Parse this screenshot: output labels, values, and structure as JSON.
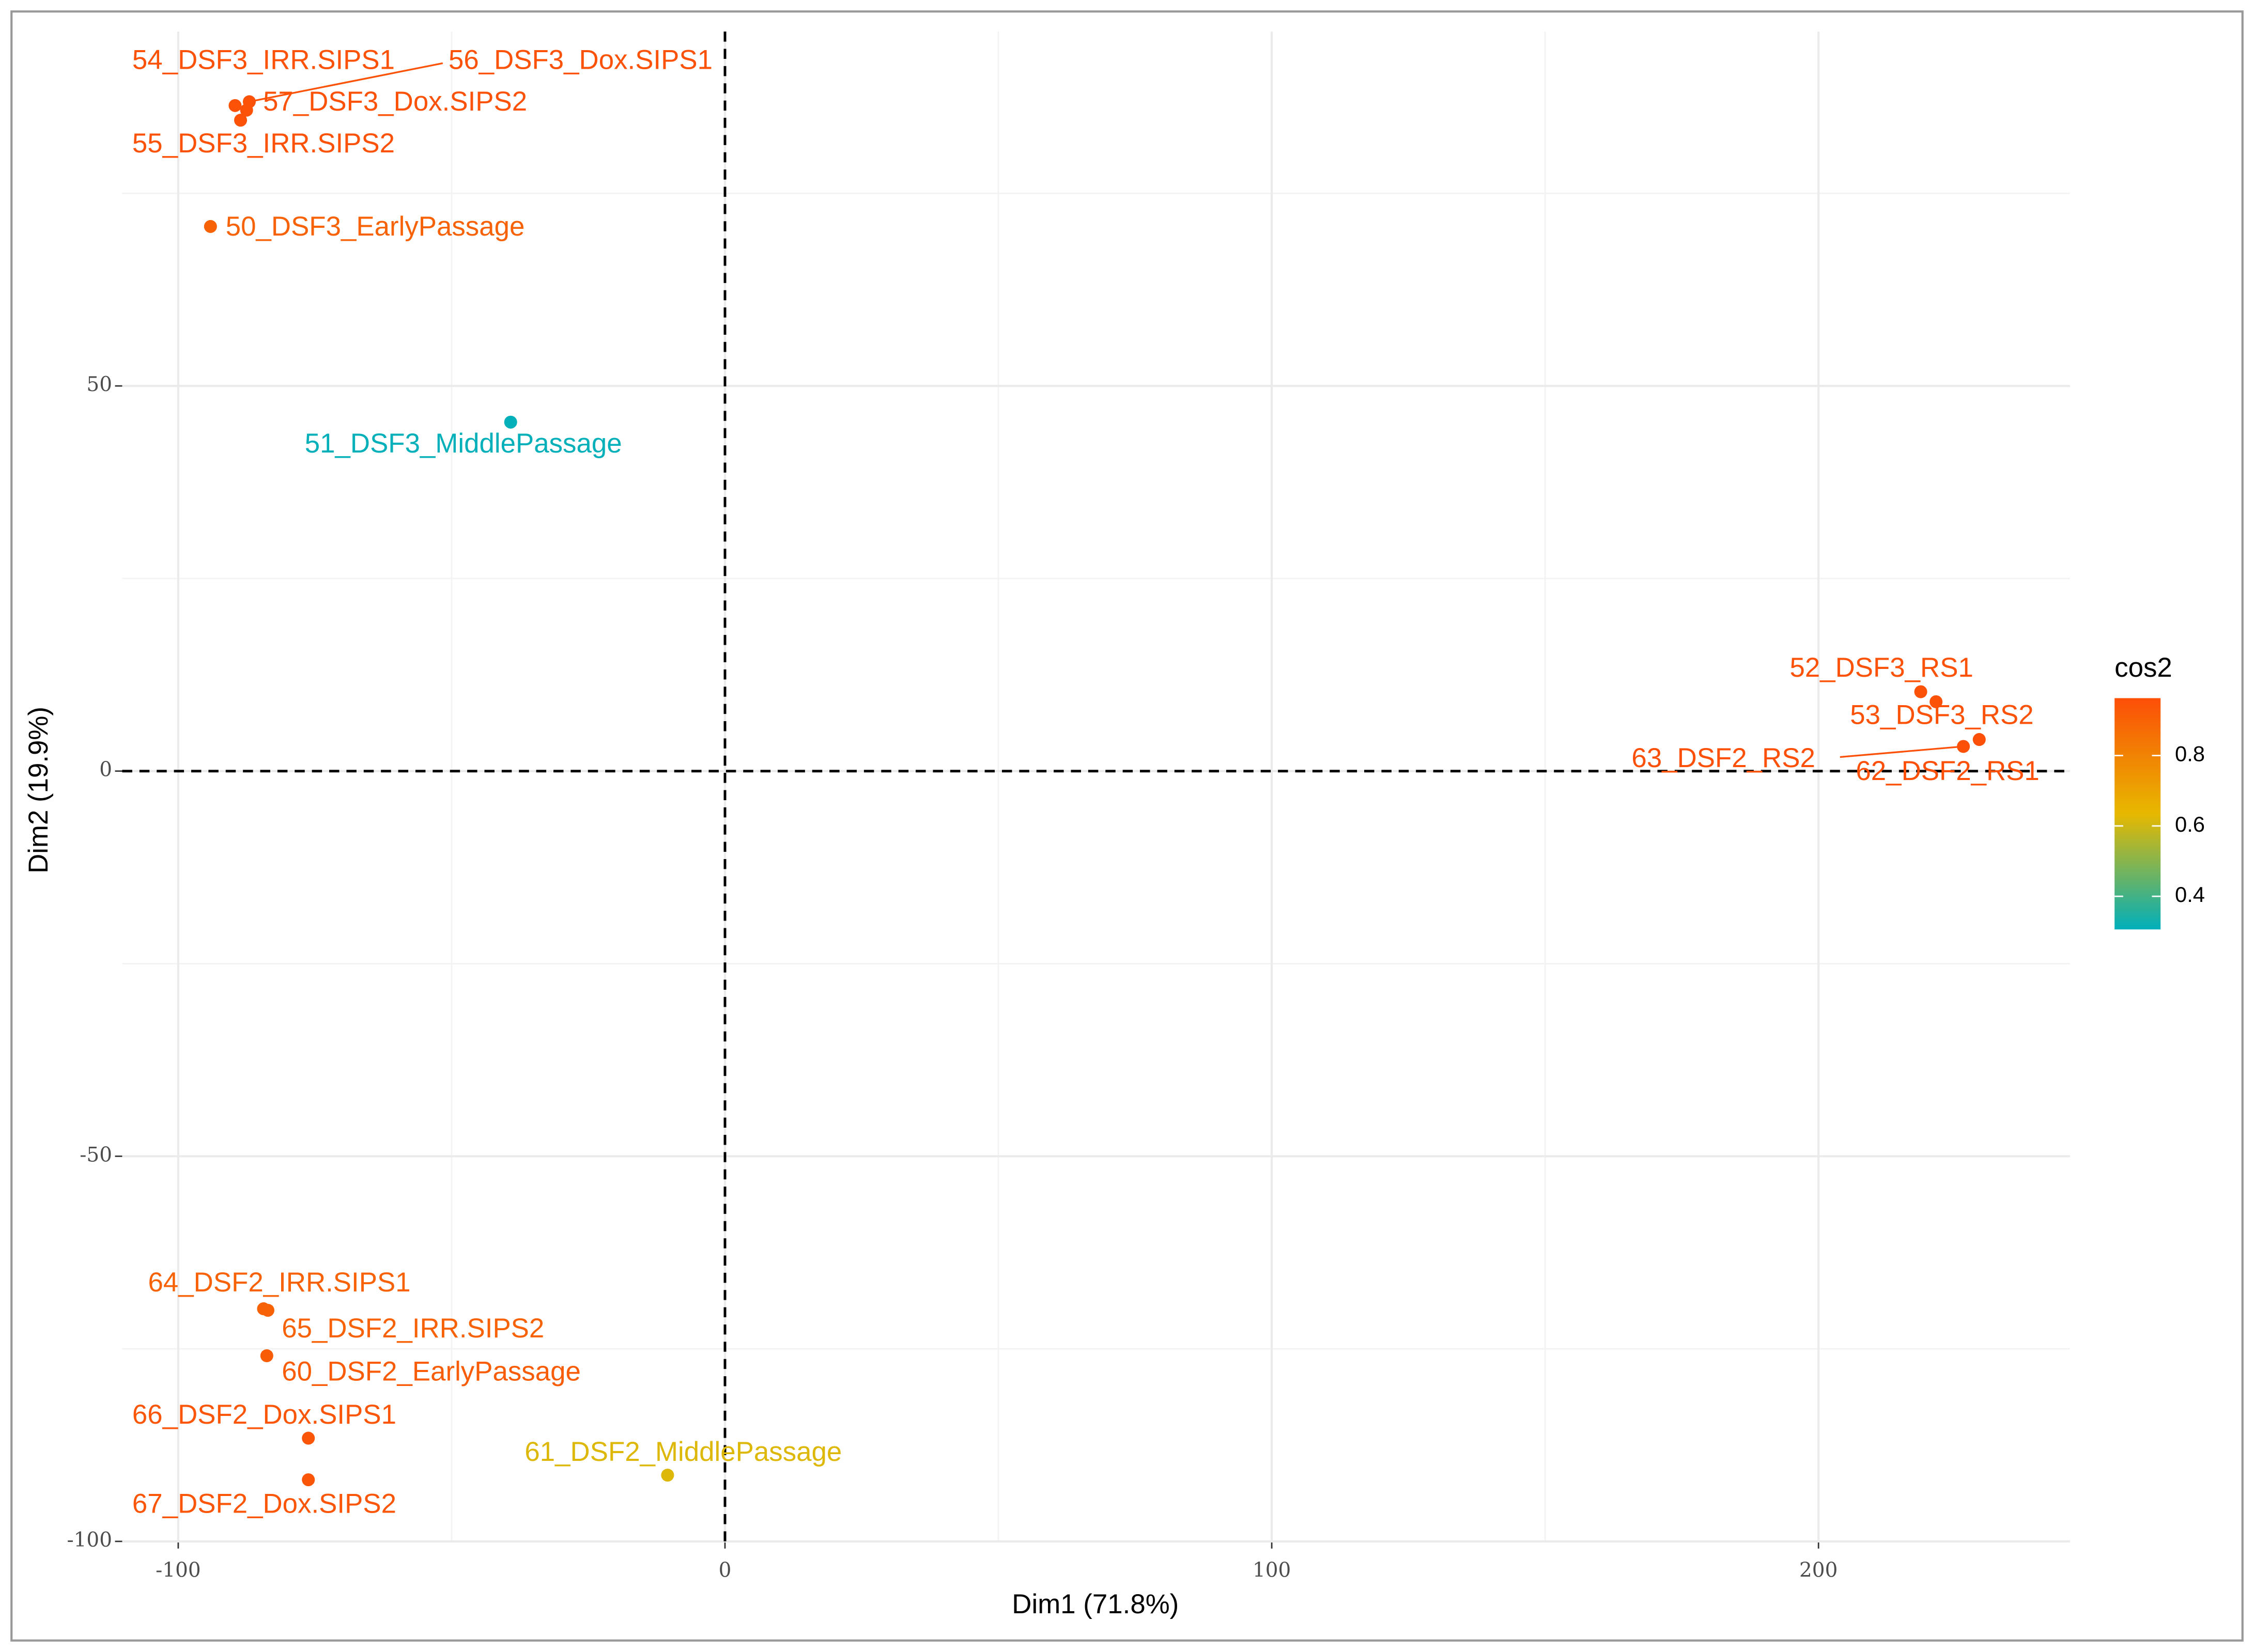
{
  "chart_data": {
    "type": "scatter",
    "xlabel": "Dim1 (71.8%)",
    "ylabel": "Dim2 (19.9%)",
    "labels": [
      "54_DSF3_IRR.SIPS1",
      "56_DSF3_Dox.SIPS1",
      "57_DSF3_Dox.SIPS2",
      "55_DSF3_IRR.SIPS2",
      "50_DSF3_EarlyPassage",
      "51_DSF3_MiddlePassage",
      "52_DSF3_RS1",
      "53_DSF3_RS2",
      "63_DSF2_RS2",
      "62_DSF2_RS1",
      "64_DSF2_IRR.SIPS1",
      "65_DSF2_IRR.SIPS2",
      "60_DSF2_EarlyPassage",
      "66_DSF2_Dox.SIPS1",
      "67_DSF2_Dox.SIPS2",
      "61_DSF2_MiddlePassage"
    ],
    "x": [
      -89.6,
      -87.0,
      -87.5,
      -88.6,
      -94.1,
      -39.2,
      218.7,
      221.5,
      226.5,
      229.4,
      -84.4,
      -83.6,
      -83.8,
      -76.2,
      -76.2,
      -10.5
    ],
    "values": [
      86.4,
      86.9,
      85.8,
      84.5,
      70.7,
      45.3,
      10.3,
      9.0,
      3.2,
      4.1,
      -69.8,
      -70.0,
      -75.9,
      -86.6,
      -92.0,
      -91.4
    ],
    "cos2": [
      0.95,
      0.95,
      0.95,
      0.95,
      0.9,
      0.31,
      0.95,
      0.95,
      0.96,
      0.96,
      0.9,
      0.9,
      0.92,
      0.94,
      0.94,
      0.62
    ],
    "xlim": [
      -110.25,
      246
    ],
    "xticks": [
      -100,
      0,
      100,
      200
    ],
    "xminor": [
      -50,
      50,
      150
    ],
    "ylim": [
      -100,
      96
    ],
    "yticks": [
      -100,
      -50,
      0,
      50
    ],
    "yminor": [
      -75,
      -25,
      25,
      75
    ],
    "hline": 0,
    "vline": 0,
    "grid": true,
    "legend_title": "cos2",
    "clim": [
      0.306,
      0.963
    ],
    "cticks": [
      0.4,
      0.6,
      0.8
    ],
    "colors": [
      "#00AFBB",
      "#E7B800",
      "#FC4E07"
    ]
  }
}
